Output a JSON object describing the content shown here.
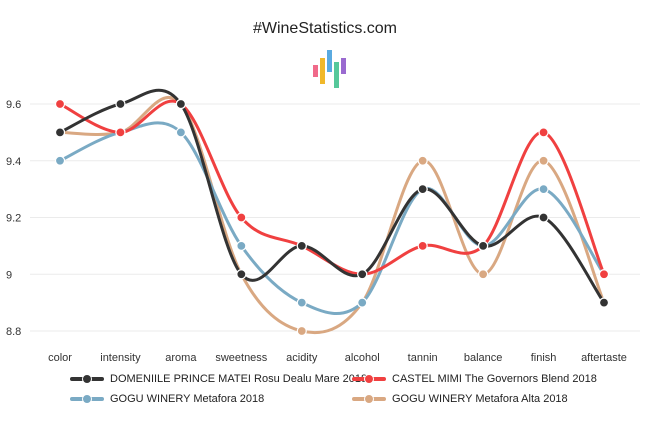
{
  "chart_data": {
    "type": "line",
    "title": "#WineStatistics.com",
    "categories": [
      "color",
      "intensity",
      "aroma",
      "sweetness",
      "acidity",
      "alcohol",
      "tannin",
      "balance",
      "finish",
      "aftertaste"
    ],
    "ylim": [
      8.8,
      9.6
    ],
    "yticks": [
      8.8,
      9,
      9.2,
      9.4,
      9.6
    ],
    "ytick_labels": [
      "8.8",
      "9",
      "9.2",
      "9.4",
      "9.6"
    ],
    "grid": true,
    "legend_position": "bottom",
    "series": [
      {
        "name": "DOMENIILE PRINCE MATEI Rosu Dealu Mare 2018",
        "color": "#333333",
        "values": [
          9.5,
          9.6,
          9.6,
          9.0,
          9.1,
          9.0,
          9.3,
          9.1,
          9.2,
          8.9
        ]
      },
      {
        "name": "CASTEL MIMI The Governors Blend 2018",
        "color": "#f04040",
        "values": [
          9.6,
          9.5,
          9.6,
          9.2,
          9.1,
          9.0,
          9.1,
          9.1,
          9.5,
          9.0
        ]
      },
      {
        "name": "GOGU WINERY Metafora 2018",
        "color": "#7aaac4",
        "values": [
          9.4,
          9.5,
          9.5,
          9.1,
          8.9,
          8.9,
          9.3,
          9.1,
          9.3,
          9.0
        ]
      },
      {
        "name": "GOGU WINERY Metafora Alta 2018",
        "color": "#d9a882",
        "values": [
          9.5,
          9.5,
          9.6,
          9.0,
          8.8,
          8.9,
          9.4,
          9.0,
          9.4,
          8.9
        ]
      }
    ],
    "logo_colors": [
      "#f06a8a",
      "#f0b82a",
      "#5aaae0",
      "#55c89a",
      "#9a6ad0"
    ]
  }
}
